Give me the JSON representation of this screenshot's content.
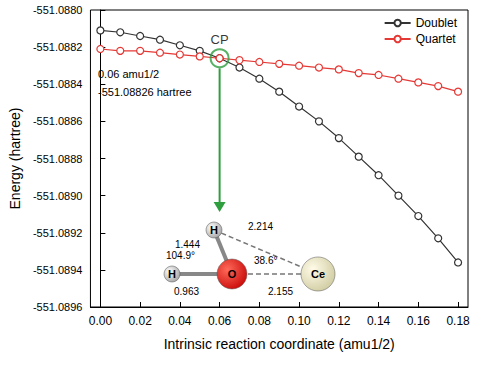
{
  "chart_data": {
    "type": "line",
    "x_label": "Intrinsic reaction coordinate (amu1/2)",
    "y_label": "Energy (hartree)",
    "x": [
      0.0,
      0.01,
      0.02,
      0.03,
      0.04,
      0.05,
      0.06,
      0.07,
      0.08,
      0.09,
      0.1,
      0.11,
      0.12,
      0.13,
      0.14,
      0.15,
      0.16,
      0.17,
      0.18
    ],
    "series": [
      {
        "name": "Doublet",
        "color": "#333333",
        "marker": "open_circle",
        "line_style": "solid",
        "values": [
          -551.08811,
          -551.08812,
          -551.08814,
          -551.08816,
          -551.08819,
          -551.08822,
          -551.08826,
          -551.08831,
          -551.08837,
          -551.08844,
          -551.08852,
          -551.0886,
          -551.08869,
          -551.08879,
          -551.08889,
          -551.089,
          -551.08911,
          -551.08923,
          -551.08936
        ]
      },
      {
        "name": "Quartet",
        "color": "#e53935",
        "marker": "open_circle",
        "line_style": "solid",
        "values": [
          -551.08821,
          -551.08822,
          -551.08822,
          -551.08823,
          -551.08824,
          -551.08825,
          -551.08826,
          -551.08827,
          -551.08828,
          -551.08829,
          -551.0883,
          -551.08831,
          -551.08832,
          -551.08834,
          -551.08835,
          -551.08837,
          -551.08839,
          -551.08841,
          -551.08844
        ]
      }
    ],
    "xlim": [
      -0.005,
      0.185
    ],
    "xticks": [
      {
        "value": 0,
        "label": "0.00"
      },
      {
        "value": 0.02,
        "label": "0.02"
      },
      {
        "value": 0.04,
        "label": "0.04"
      },
      {
        "value": 0.06,
        "label": "0.06"
      },
      {
        "value": 0.08,
        "label": "0.08"
      },
      {
        "value": 0.1,
        "label": "0.10"
      },
      {
        "value": 0.12,
        "label": "0.12"
      },
      {
        "value": 0.14,
        "label": "0.14"
      },
      {
        "value": 0.16,
        "label": "0.16"
      },
      {
        "value": 0.18,
        "label": "0.18"
      }
    ],
    "ylim": [
      -551.0896,
      -551.088
    ],
    "yticks": [
      {
        "value": -551.0896,
        "label": "-551.0896"
      },
      {
        "value": -551.0894,
        "label": "-551.0894"
      },
      {
        "value": -551.0892,
        "label": "-551.0892"
      },
      {
        "value": -551.089,
        "label": "-551.0890"
      },
      {
        "value": -551.0888,
        "label": "-551.0888"
      },
      {
        "value": -551.0886,
        "label": "-551.0886"
      },
      {
        "value": -551.0884,
        "label": "-551.0884"
      },
      {
        "value": -551.0882,
        "label": "-551.0882"
      },
      {
        "value": -551.088,
        "label": "-551.0880"
      }
    ],
    "grid": false,
    "legend": "upper right",
    "critical_point": {
      "label": "CP",
      "x": 0.06,
      "y": -551.08826,
      "color": "#2e9e3e",
      "x_text": "0.06 amu1/2",
      "y_text": "-551.08826 hartree"
    },
    "molecule": {
      "atoms": [
        "H",
        "H",
        "O",
        "Ce"
      ],
      "labels": [
        "1.444",
        "2.214",
        "104.9°",
        "38.6°",
        "0.963",
        "2.155"
      ]
    }
  }
}
